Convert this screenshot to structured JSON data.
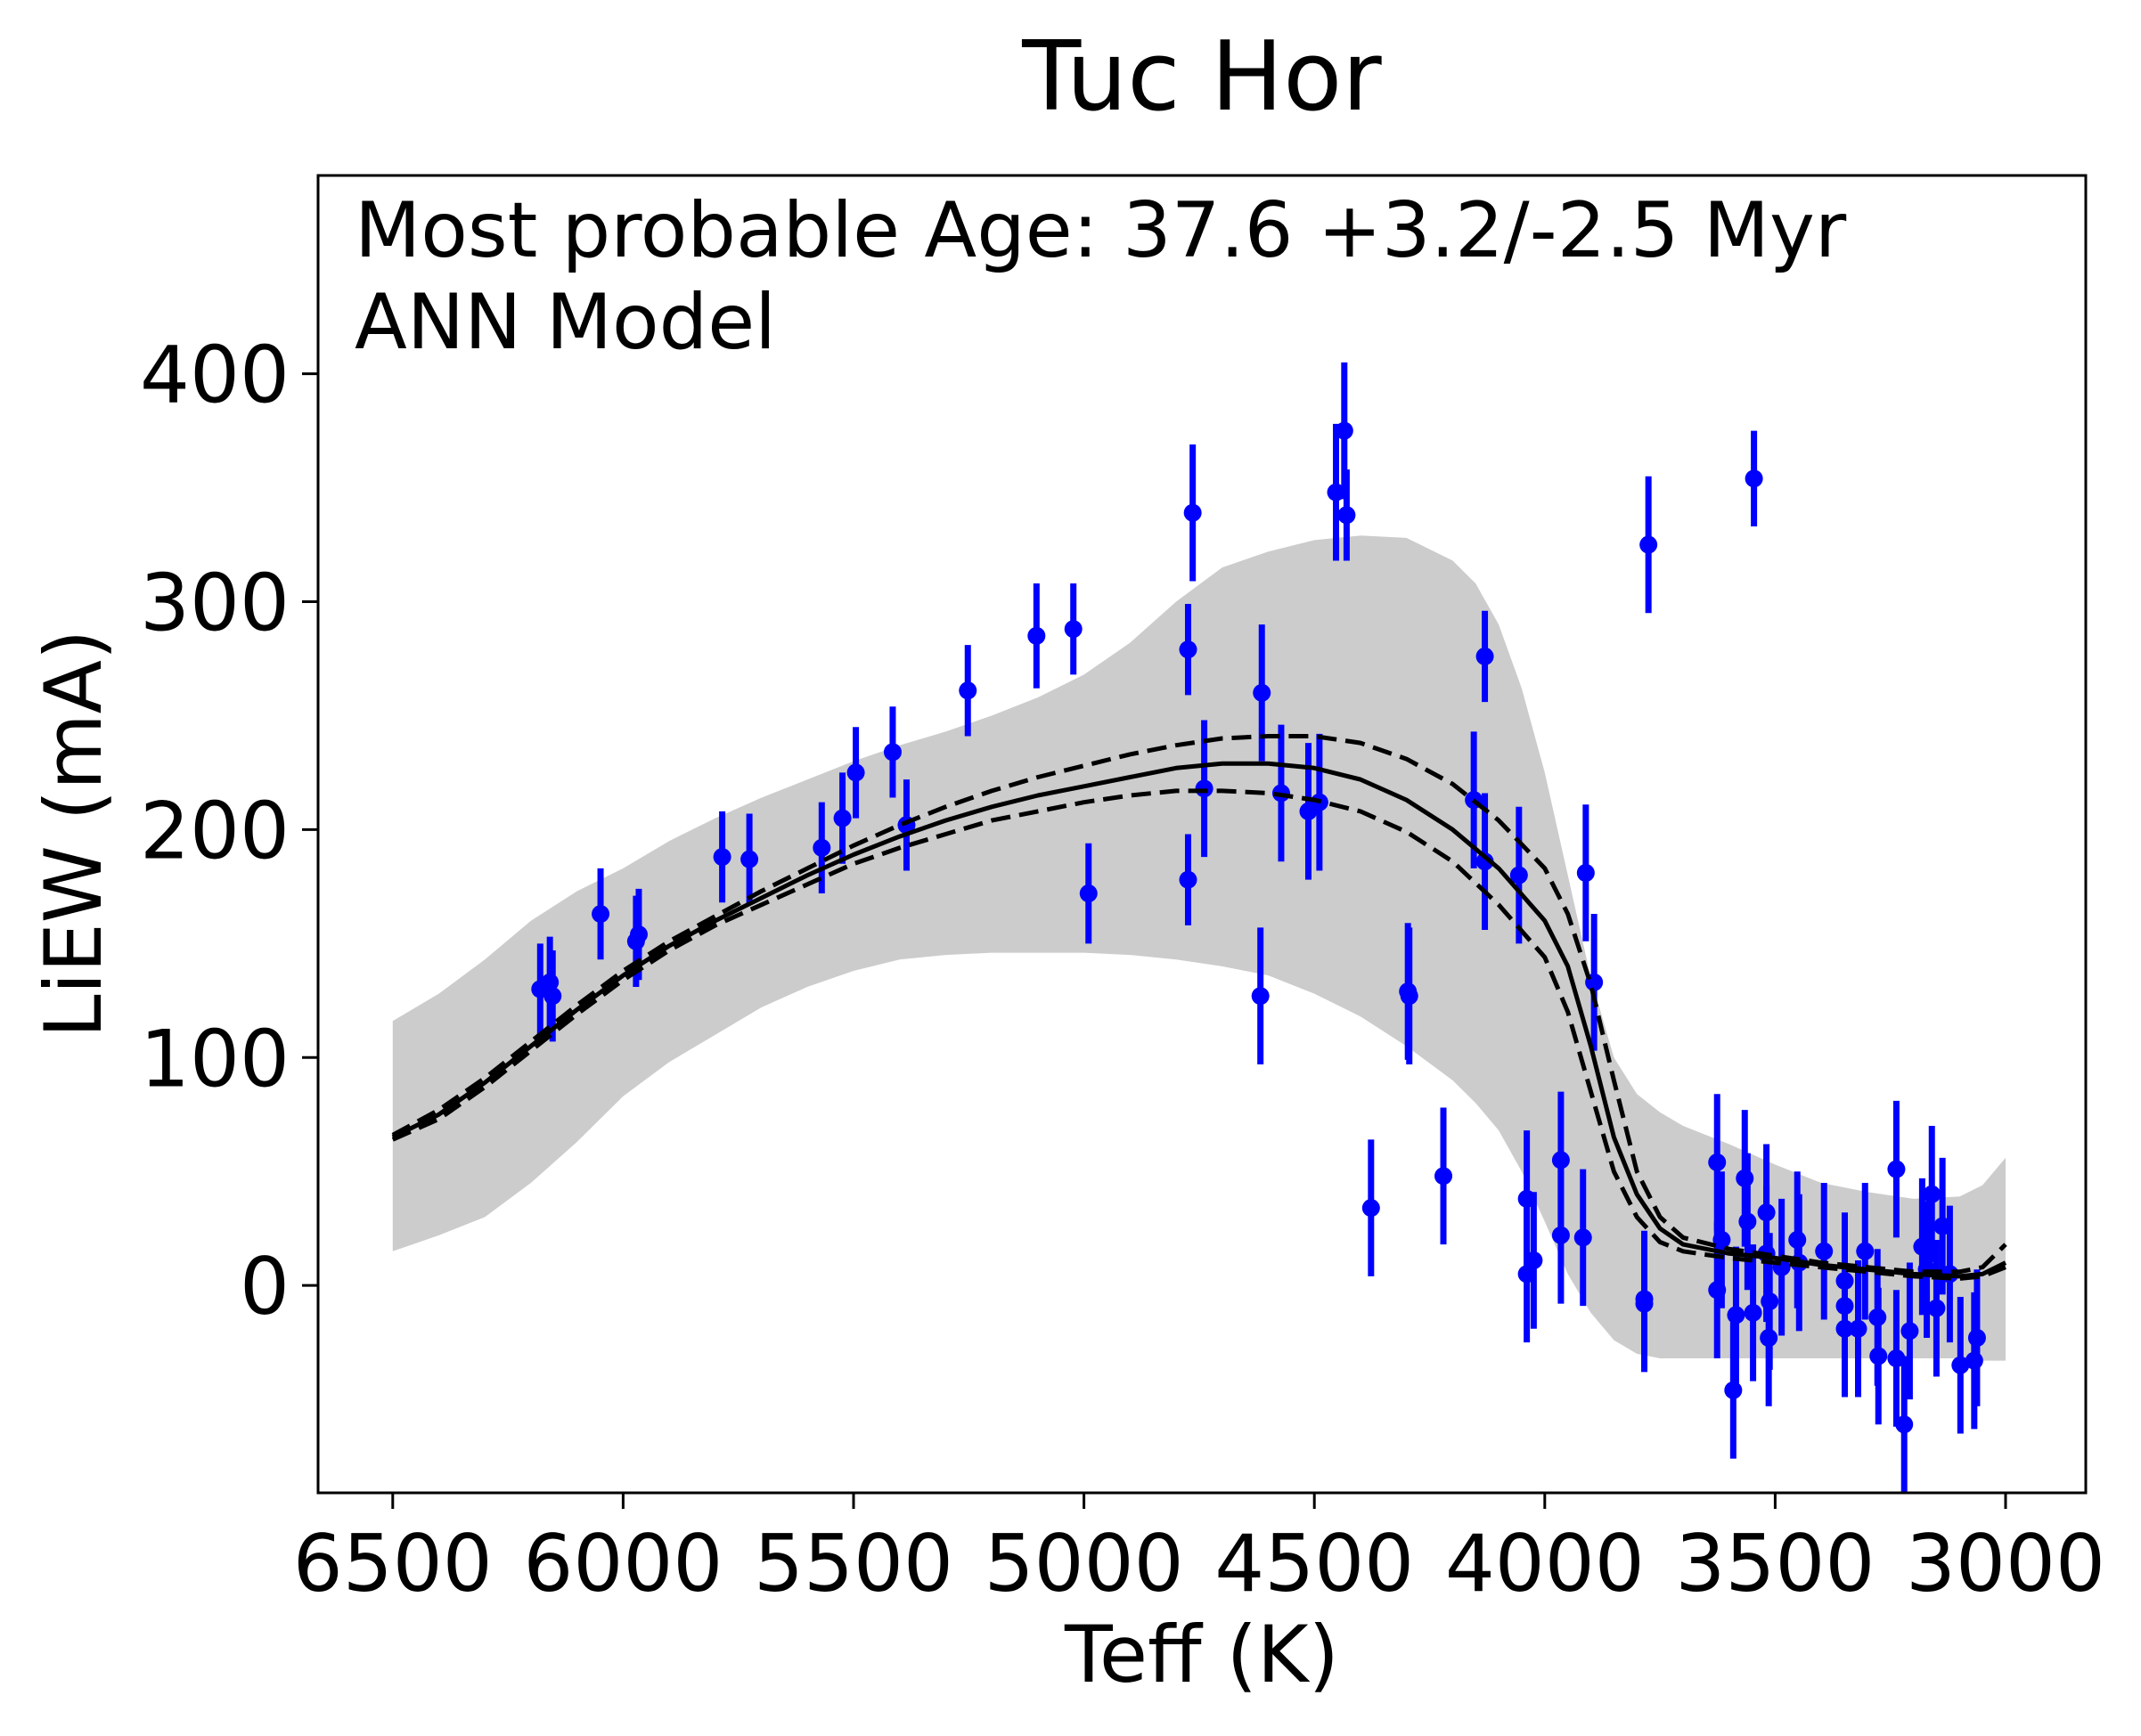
{
  "chart_data": {
    "type": "scatter",
    "title": "Tuc Hor",
    "xlabel": "Teff (K)",
    "ylabel": "LiEW (mA)",
    "xlim": [
      6662,
      2826
    ],
    "ylim": [
      -91,
      487
    ],
    "x_inverted": true,
    "grid": false,
    "xticks": [
      6500,
      6000,
      5500,
      5000,
      4500,
      4000,
      3500,
      3000
    ],
    "xtick_labels": [
      "6500",
      "6000",
      "5500",
      "5000",
      "4500",
      "4000",
      "3500",
      "3000"
    ],
    "yticks": [
      0,
      100,
      200,
      300,
      400
    ],
    "ytick_labels": [
      "0",
      "100",
      "200",
      "300",
      "400"
    ],
    "annotations": [
      "Most probable Age: 37.6 +3.2/-2.5 Myr",
      "ANN Model"
    ],
    "colors": {
      "points": "#0000ff",
      "band": "#cccccc",
      "model": "#000000"
    },
    "band": {
      "name": "model scatter envelope",
      "teff": [
        6500,
        6400,
        6300,
        6200,
        6100,
        6000,
        5900,
        5800,
        5700,
        5600,
        5500,
        5400,
        5300,
        5200,
        5100,
        5000,
        4900,
        4800,
        4700,
        4600,
        4500,
        4400,
        4300,
        4200,
        4150,
        4100,
        4050,
        4000,
        3950,
        3900,
        3850,
        3800,
        3750,
        3700,
        3600,
        3500,
        3400,
        3300,
        3200,
        3100,
        3050,
        3000
      ],
      "upper": [
        116,
        128,
        143,
        160,
        173,
        183,
        195,
        205,
        214,
        222,
        230,
        237,
        243,
        250,
        258,
        268,
        282,
        300,
        315,
        322,
        327,
        329,
        328,
        318,
        308,
        290,
        262,
        225,
        180,
        135,
        100,
        84,
        76,
        70,
        62,
        53,
        45,
        41,
        38,
        39,
        44,
        56
      ],
      "lower": [
        15,
        22,
        30,
        45,
        63,
        83,
        98,
        110,
        122,
        131,
        138,
        143,
        145,
        146,
        146,
        146,
        145,
        143,
        140,
        136,
        128,
        118,
        105,
        90,
        80,
        68,
        50,
        28,
        5,
        -12,
        -24,
        -30,
        -32,
        -32,
        -32,
        -32,
        -32,
        -32,
        -32,
        -32,
        -33,
        -33
      ]
    },
    "series": [
      {
        "name": "median model",
        "style": "solid",
        "teff": [
          6500,
          6400,
          6300,
          6200,
          6100,
          6000,
          5900,
          5800,
          5700,
          5600,
          5500,
          5400,
          5300,
          5200,
          5100,
          5000,
          4900,
          4800,
          4700,
          4600,
          4500,
          4400,
          4300,
          4200,
          4100,
          4000,
          3950,
          3900,
          3850,
          3800,
          3750,
          3700,
          3600,
          3500,
          3400,
          3300,
          3200,
          3100,
          3050,
          3000
        ],
        "liew": [
          65,
          75,
          89,
          105,
          121,
          136,
          149,
          160,
          170,
          180,
          189,
          197,
          204,
          210,
          215,
          219,
          223,
          227,
          229,
          229,
          227,
          222,
          213,
          200,
          183,
          160,
          140,
          105,
          65,
          40,
          25,
          18,
          14,
          12,
          9,
          7,
          5,
          4,
          5,
          10
        ]
      },
      {
        "name": "upper model bound",
        "style": "dashed",
        "teff": [
          6500,
          6400,
          6300,
          6200,
          6100,
          6000,
          5900,
          5800,
          5700,
          5600,
          5500,
          5400,
          5300,
          5200,
          5100,
          5000,
          4900,
          4800,
          4700,
          4600,
          4500,
          4400,
          4300,
          4200,
          4100,
          4000,
          3950,
          3900,
          3850,
          3800,
          3750,
          3700,
          3600,
          3500,
          3400,
          3300,
          3200,
          3100,
          3050,
          3000
        ],
        "liew": [
          66,
          77,
          91,
          107,
          123,
          138,
          151,
          162,
          173,
          183,
          193,
          202,
          210,
          217,
          223,
          228,
          233,
          237,
          240,
          241,
          241,
          238,
          231,
          220,
          204,
          183,
          163,
          132,
          90,
          50,
          30,
          21,
          16,
          13,
          10,
          8,
          6,
          6,
          8,
          18
        ]
      },
      {
        "name": "lower model bound",
        "style": "dashed",
        "teff": [
          6500,
          6400,
          6300,
          6200,
          6100,
          6000,
          5900,
          5800,
          5700,
          5600,
          5500,
          5400,
          5300,
          5200,
          5100,
          5000,
          4900,
          4800,
          4700,
          4600,
          4500,
          4400,
          4300,
          4200,
          4100,
          4000,
          3950,
          3900,
          3850,
          3800,
          3750,
          3700,
          3600,
          3500,
          3400,
          3300,
          3200,
          3100,
          3050,
          3000
        ],
        "liew": [
          64,
          73,
          87,
          103,
          119,
          134,
          147,
          158,
          167,
          176,
          185,
          192,
          198,
          204,
          208,
          212,
          215,
          217,
          217,
          216,
          213,
          208,
          199,
          186,
          167,
          144,
          120,
          85,
          50,
          30,
          19,
          15,
          12,
          10,
          8,
          6,
          4,
          3,
          4,
          8
        ]
      }
    ],
    "points": {
      "name": "Tuc Hor members",
      "teff": [
        6180,
        6159,
        6153,
        6049,
        5972,
        5966,
        5785,
        5726,
        5569,
        5524,
        5495,
        5415,
        5385,
        5252,
        5103,
        5023,
        4990,
        4774,
        4774,
        4764,
        4739,
        4614,
        4617,
        4572,
        4513,
        4489,
        4453,
        4435,
        4430,
        4377,
        4297,
        4294,
        4220,
        4154,
        4130,
        4130,
        4056,
        4039,
        4039,
        4024,
        3965,
        3965,
        3917,
        3911,
        3893,
        3784,
        3784,
        3775,
        3626,
        3626,
        3616,
        3591,
        3585,
        3566,
        3560,
        3548,
        3546,
        3519,
        3519,
        3514,
        3512,
        3486,
        3452,
        3448,
        3394,
        3349,
        3349,
        3349,
        3320,
        3305,
        3278,
        3276,
        3237,
        3237,
        3220,
        3208,
        3181,
        3171,
        3160,
        3150,
        3137,
        3121,
        3098,
        3068,
        3062
      ],
      "liew": [
        130,
        133,
        127,
        163,
        151,
        154,
        188,
        187,
        192,
        205,
        225,
        234,
        202,
        261,
        285,
        288,
        172,
        178,
        279,
        339,
        218,
        260,
        127,
        216,
        208,
        212,
        348,
        375,
        338,
        34,
        129,
        127,
        48,
        213,
        276,
        186,
        180,
        38,
        5,
        11,
        55,
        22,
        21,
        181,
        133,
        -6,
        -8,
        325,
        54,
        -2,
        20,
        -46,
        -13,
        47,
        28,
        -12,
        354,
        32,
        14,
        -23,
        -7,
        8,
        20,
        10,
        15,
        2,
        -9,
        -19,
        -19,
        15,
        -14,
        -31,
        51,
        -32,
        -61,
        -20,
        17,
        7,
        40,
        -10,
        26,
        5,
        -35,
        -33,
        -23
      ],
      "err": [
        20,
        20,
        20,
        20,
        20,
        20,
        20,
        20,
        20,
        20,
        20,
        20,
        20,
        20,
        23,
        20,
        22,
        20,
        20,
        30,
        30,
        30,
        30,
        30,
        30,
        30,
        30,
        30,
        20,
        30,
        30,
        30,
        30,
        30,
        20,
        30,
        30,
        30,
        30,
        30,
        30,
        30,
        30,
        30,
        30,
        30,
        30,
        30,
        30,
        30,
        30,
        30,
        30,
        30,
        30,
        30,
        21,
        30,
        30,
        30,
        30,
        30,
        30,
        30,
        30,
        30,
        30,
        30,
        30,
        30,
        30,
        30,
        30,
        30,
        30,
        30,
        30,
        30,
        30,
        30,
        30,
        30,
        30,
        30,
        30
      ]
    }
  }
}
